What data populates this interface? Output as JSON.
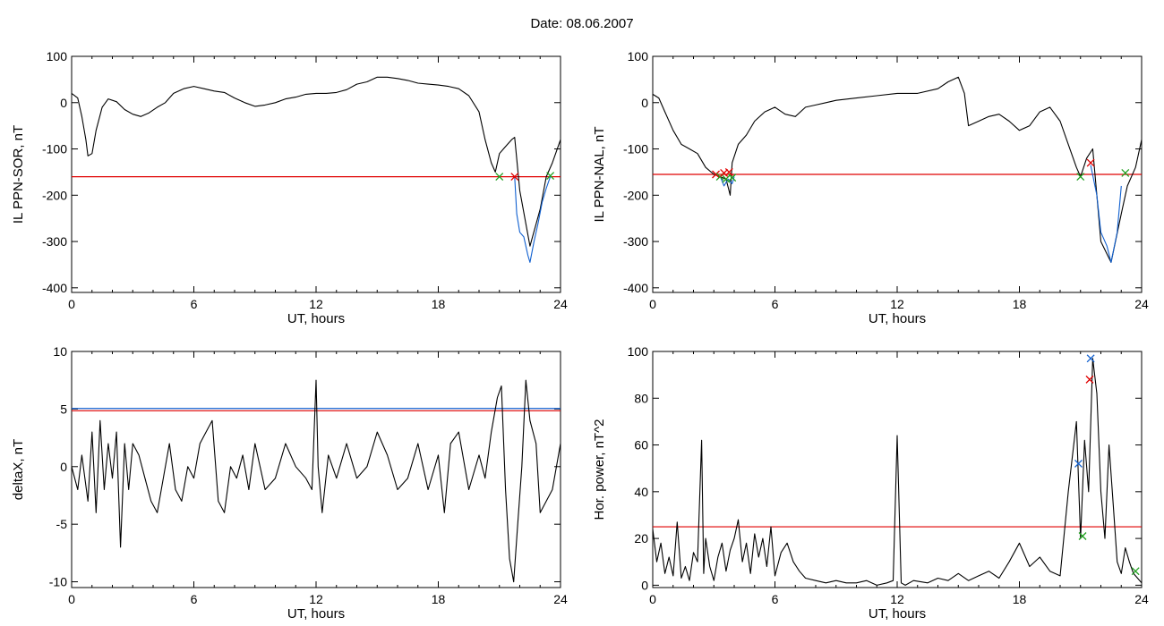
{
  "figure_title": "Date:  08.06.2007",
  "chart_data": [
    {
      "type": "line",
      "xlabel": "UT, hours",
      "ylabel": "IL PPN-SOR, nT",
      "xlim": [
        0,
        24
      ],
      "ylim": [
        -410,
        100
      ],
      "xticks": [
        0,
        6,
        12,
        18,
        24
      ],
      "yticks": [
        -400,
        -300,
        -200,
        -100,
        0,
        100
      ],
      "threshold_lines": [
        {
          "y": -160,
          "color": "#e00000"
        }
      ],
      "series": [
        {
          "color": "#000000",
          "x": [
            0,
            0.3,
            0.5,
            0.7,
            0.8,
            1.0,
            1.2,
            1.5,
            1.8,
            2.2,
            2.6,
            3.0,
            3.4,
            3.8,
            4.2,
            4.6,
            5.0,
            5.5,
            6.0,
            6.5,
            7.0,
            7.5,
            8.0,
            8.5,
            9.0,
            9.5,
            10.0,
            10.5,
            11.0,
            11.5,
            12.0,
            12.5,
            13.0,
            13.5,
            14.0,
            14.5,
            15.0,
            15.5,
            16.0,
            16.5,
            17.0,
            17.5,
            18.0,
            18.5,
            19.0,
            19.5,
            20.0,
            20.3,
            20.6,
            20.8,
            21.0,
            21.2,
            21.4,
            21.6,
            21.75,
            22.0,
            22.5,
            23.0,
            23.3,
            23.6,
            24.0
          ],
          "y": [
            20,
            10,
            -30,
            -80,
            -115,
            -110,
            -60,
            -10,
            8,
            2,
            -15,
            -25,
            -30,
            -22,
            -10,
            0,
            20,
            30,
            35,
            30,
            25,
            22,
            10,
            0,
            -8,
            -5,
            0,
            8,
            12,
            18,
            20,
            20,
            22,
            28,
            40,
            45,
            55,
            55,
            52,
            48,
            42,
            40,
            38,
            35,
            30,
            15,
            -20,
            -80,
            -130,
            -150,
            -110,
            -100,
            -90,
            -80,
            -75,
            -190,
            -310,
            -230,
            -160,
            -130,
            -80
          ]
        },
        {
          "color": "#1060d0",
          "x": [
            21.75,
            21.85,
            22.0,
            22.2,
            22.4,
            22.5,
            22.7,
            22.9,
            23.1,
            23.3,
            23.5
          ],
          "y": [
            -160,
            -240,
            -280,
            -290,
            -330,
            -345,
            -300,
            -260,
            -215,
            -185,
            -160
          ]
        }
      ],
      "markers": [
        {
          "x": 21.0,
          "y": -160,
          "color": "#20a020"
        },
        {
          "x": 21.75,
          "y": -160,
          "color": "#e00000"
        },
        {
          "x": 23.5,
          "y": -158,
          "color": "#20a020"
        }
      ]
    },
    {
      "type": "line",
      "xlabel": "UT, hours",
      "ylabel": "IL PPN-NAL, nT",
      "xlim": [
        0,
        24
      ],
      "ylim": [
        -410,
        100
      ],
      "xticks": [
        0,
        6,
        12,
        18,
        24
      ],
      "yticks": [
        -400,
        -300,
        -200,
        -100,
        0,
        100
      ],
      "threshold_lines": [
        {
          "y": -155,
          "color": "#e00000"
        }
      ],
      "series": [
        {
          "color": "#000000",
          "x": [
            0,
            0.3,
            0.6,
            1.0,
            1.4,
            1.8,
            2.2,
            2.6,
            3.0,
            3.3,
            3.6,
            3.8,
            3.9,
            4.2,
            4.6,
            5.0,
            5.5,
            6.0,
            6.5,
            7.0,
            7.5,
            8.0,
            8.5,
            9.0,
            10.0,
            11.0,
            12.0,
            13.0,
            14.0,
            14.5,
            15.0,
            15.3,
            15.5,
            16.0,
            16.5,
            17.0,
            17.5,
            18.0,
            18.5,
            19.0,
            19.5,
            20.0,
            20.4,
            20.8,
            21.0,
            21.3,
            21.6,
            21.8,
            22.0,
            22.5,
            23.0,
            23.3,
            23.7,
            24.0
          ],
          "y": [
            18,
            10,
            -20,
            -60,
            -90,
            -100,
            -110,
            -140,
            -155,
            -160,
            -165,
            -200,
            -130,
            -90,
            -70,
            -40,
            -20,
            -10,
            -25,
            -30,
            -10,
            -5,
            0,
            5,
            10,
            15,
            20,
            20,
            30,
            45,
            55,
            20,
            -50,
            -40,
            -30,
            -25,
            -40,
            -60,
            -50,
            -20,
            -10,
            -40,
            -90,
            -140,
            -160,
            -120,
            -100,
            -200,
            -300,
            -345,
            -240,
            -180,
            -140,
            -80
          ]
        },
        {
          "color": "#1060d0",
          "x": [
            3.3,
            3.5,
            3.7,
            3.9,
            4.0
          ],
          "y": [
            -158,
            -180,
            -165,
            -175,
            -160
          ]
        },
        {
          "color": "#1060d0",
          "x": [
            21.5,
            21.8,
            22.0,
            22.3,
            22.5,
            22.8,
            23.0
          ],
          "y": [
            -135,
            -200,
            -280,
            -310,
            -345,
            -280,
            -180
          ]
        }
      ],
      "markers": [
        {
          "x": 3.1,
          "y": -155,
          "color": "#e00000"
        },
        {
          "x": 3.3,
          "y": -160,
          "color": "#20a020"
        },
        {
          "x": 3.5,
          "y": -152,
          "color": "#e00000"
        },
        {
          "x": 3.6,
          "y": -165,
          "color": "#20a020"
        },
        {
          "x": 3.75,
          "y": -150,
          "color": "#e00000"
        },
        {
          "x": 3.9,
          "y": -162,
          "color": "#20a020"
        },
        {
          "x": 21.0,
          "y": -160,
          "color": "#20a020"
        },
        {
          "x": 21.5,
          "y": -130,
          "color": "#e00000"
        },
        {
          "x": 23.2,
          "y": -152,
          "color": "#20a020"
        }
      ]
    },
    {
      "type": "line",
      "xlabel": "UT, hours",
      "ylabel": "deltaX, nT",
      "xlim": [
        0,
        24
      ],
      "ylim": [
        -10.5,
        10
      ],
      "xticks": [
        0,
        6,
        12,
        18,
        24
      ],
      "yticks": [
        -10,
        -5,
        0,
        5,
        10
      ],
      "threshold_lines": [
        {
          "y": 4.85,
          "color": "#e00000"
        },
        {
          "y": 5.05,
          "color": "#1060d0"
        }
      ],
      "series": [
        {
          "color": "#000000",
          "x": [
            0,
            0.3,
            0.5,
            0.8,
            1.0,
            1.2,
            1.4,
            1.6,
            1.8,
            2.0,
            2.2,
            2.4,
            2.6,
            2.8,
            3.0,
            3.3,
            3.6,
            3.9,
            4.2,
            4.5,
            4.8,
            5.1,
            5.4,
            5.7,
            6.0,
            6.3,
            6.6,
            6.9,
            7.2,
            7.5,
            7.8,
            8.1,
            8.4,
            8.7,
            9.0,
            9.5,
            10.0,
            10.5,
            11.0,
            11.5,
            11.8,
            12.0,
            12.1,
            12.3,
            12.6,
            13.0,
            13.5,
            14.0,
            14.5,
            15.0,
            15.5,
            16.0,
            16.5,
            17.0,
            17.5,
            18.0,
            18.3,
            18.6,
            19.0,
            19.5,
            20.0,
            20.3,
            20.6,
            20.9,
            21.1,
            21.3,
            21.5,
            21.7,
            21.9,
            22.1,
            22.3,
            22.5,
            22.8,
            23.0,
            23.3,
            23.6,
            24.0
          ],
          "y": [
            0,
            -2,
            1,
            -3,
            3,
            -4,
            4,
            -2,
            2,
            -1,
            3,
            -7,
            2,
            -2,
            2,
            1,
            -1,
            -3,
            -4,
            -1,
            2,
            -2,
            -3,
            0,
            -1,
            2,
            3,
            4,
            -3,
            -4,
            0,
            -1,
            1,
            -2,
            2,
            -2,
            -1,
            2,
            0,
            -1,
            -2,
            7.5,
            0,
            -4,
            1,
            -1,
            2,
            -1,
            0,
            3,
            1,
            -2,
            -1,
            2,
            -2,
            1,
            -4,
            2,
            3,
            -2,
            1,
            -1,
            3,
            6,
            7,
            -2,
            -8,
            -10,
            -5,
            0,
            7.5,
            4,
            2,
            -4,
            -3,
            -2,
            2
          ]
        }
      ],
      "markers": []
    },
    {
      "type": "line",
      "xlabel": "UT, hours",
      "ylabel": "Hor. power, nT^2",
      "xlim": [
        0,
        24
      ],
      "ylim": [
        -1,
        100
      ],
      "xticks": [
        0,
        6,
        12,
        18,
        24
      ],
      "yticks": [
        0,
        20,
        40,
        60,
        80,
        100
      ],
      "threshold_lines": [
        {
          "y": 25,
          "color": "#e00000"
        }
      ],
      "series": [
        {
          "color": "#000000",
          "x": [
            0,
            0.2,
            0.4,
            0.6,
            0.8,
            1.0,
            1.2,
            1.4,
            1.6,
            1.8,
            2.0,
            2.2,
            2.4,
            2.5,
            2.6,
            2.8,
            3.0,
            3.2,
            3.4,
            3.6,
            3.8,
            4.0,
            4.2,
            4.4,
            4.6,
            4.8,
            5.0,
            5.2,
            5.4,
            5.6,
            5.8,
            6.0,
            6.3,
            6.6,
            6.9,
            7.2,
            7.5,
            8.0,
            8.5,
            9.0,
            9.5,
            10.0,
            10.5,
            11.0,
            11.5,
            11.8,
            12.0,
            12.2,
            12.4,
            12.8,
            13.5,
            14.0,
            14.5,
            15.0,
            15.5,
            16.0,
            16.5,
            17.0,
            17.5,
            18.0,
            18.5,
            19.0,
            19.5,
            20.0,
            20.4,
            20.8,
            21.0,
            21.2,
            21.4,
            21.6,
            21.8,
            22.0,
            22.2,
            22.4,
            22.6,
            22.8,
            23.0,
            23.2,
            23.4,
            23.6,
            23.8,
            24.0
          ],
          "y": [
            24,
            10,
            18,
            5,
            12,
            4,
            27,
            3,
            8,
            2,
            14,
            10,
            62,
            5,
            20,
            8,
            2,
            12,
            18,
            6,
            15,
            20,
            28,
            10,
            18,
            5,
            22,
            12,
            20,
            8,
            25,
            4,
            14,
            18,
            10,
            6,
            3,
            2,
            1,
            2,
            1,
            1,
            2,
            0,
            1,
            2,
            64,
            1,
            0,
            2,
            1,
            3,
            2,
            5,
            2,
            4,
            6,
            3,
            10,
            18,
            8,
            12,
            6,
            4,
            40,
            70,
            20,
            62,
            40,
            97,
            82,
            40,
            20,
            60,
            35,
            10,
            5,
            16,
            10,
            5,
            3,
            1
          ]
        }
      ],
      "markers": [
        {
          "x": 20.9,
          "y": 52,
          "color": "#1060d0"
        },
        {
          "x": 21.5,
          "y": 97,
          "color": "#1060d0"
        },
        {
          "x": 21.45,
          "y": 88,
          "color": "#e00000"
        },
        {
          "x": 21.1,
          "y": 21,
          "color": "#20a020"
        },
        {
          "x": 23.7,
          "y": 6,
          "color": "#20a020"
        }
      ]
    }
  ]
}
